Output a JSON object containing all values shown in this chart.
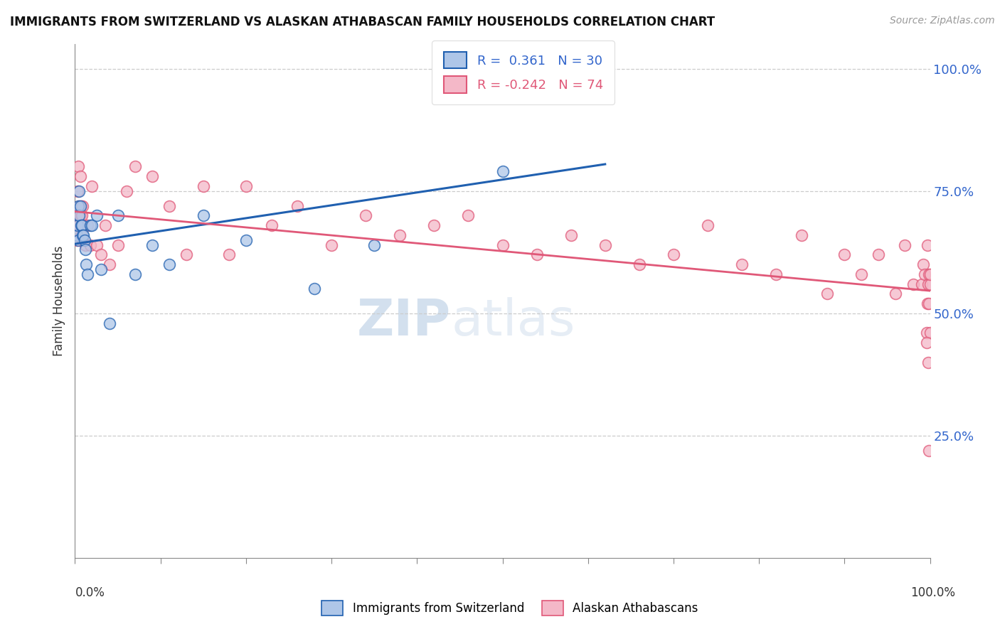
{
  "title": "IMMIGRANTS FROM SWITZERLAND VS ALASKAN ATHABASCAN FAMILY HOUSEHOLDS CORRELATION CHART",
  "source": "Source: ZipAtlas.com",
  "ylabel": "Family Households",
  "legend_blue_label": "Immigrants from Switzerland",
  "legend_pink_label": "Alaskan Athabascans",
  "blue_R": 0.361,
  "blue_N": 30,
  "pink_R": -0.242,
  "pink_N": 74,
  "blue_color": "#aec6e8",
  "pink_color": "#f4b8c8",
  "blue_line_color": "#2060b0",
  "pink_line_color": "#e05878",
  "watermark1": "ZIP",
  "watermark2": "atlas",
  "blue_scatter_x": [
    0.002,
    0.003,
    0.004,
    0.004,
    0.005,
    0.005,
    0.006,
    0.007,
    0.008,
    0.009,
    0.01,
    0.011,
    0.012,
    0.013,
    0.015,
    0.018,
    0.02,
    0.025,
    0.03,
    0.04,
    0.05,
    0.07,
    0.09,
    0.11,
    0.15,
    0.2,
    0.28,
    0.35,
    0.5,
    0.6
  ],
  "blue_scatter_y": [
    0.66,
    0.68,
    0.72,
    0.65,
    0.7,
    0.75,
    0.72,
    0.68,
    0.68,
    0.66,
    0.66,
    0.65,
    0.63,
    0.6,
    0.58,
    0.68,
    0.68,
    0.7,
    0.59,
    0.48,
    0.7,
    0.58,
    0.64,
    0.6,
    0.7,
    0.65,
    0.55,
    0.64,
    0.79,
    0.96
  ],
  "pink_scatter_x": [
    0.001,
    0.002,
    0.002,
    0.003,
    0.003,
    0.004,
    0.004,
    0.005,
    0.005,
    0.006,
    0.006,
    0.007,
    0.007,
    0.008,
    0.008,
    0.009,
    0.009,
    0.01,
    0.012,
    0.015,
    0.018,
    0.02,
    0.025,
    0.03,
    0.035,
    0.04,
    0.05,
    0.06,
    0.07,
    0.09,
    0.11,
    0.13,
    0.15,
    0.18,
    0.2,
    0.23,
    0.26,
    0.3,
    0.34,
    0.38,
    0.42,
    0.46,
    0.5,
    0.54,
    0.58,
    0.62,
    0.66,
    0.7,
    0.74,
    0.78,
    0.82,
    0.85,
    0.88,
    0.9,
    0.92,
    0.94,
    0.96,
    0.97,
    0.98,
    0.99,
    0.992,
    0.994,
    0.996,
    0.997,
    0.998,
    0.999,
    0.999,
    1.0,
    1.0,
    1.0,
    0.999,
    0.998,
    0.997,
    0.996
  ],
  "pink_scatter_y": [
    0.68,
    0.7,
    0.65,
    0.7,
    0.75,
    0.68,
    0.8,
    0.72,
    0.68,
    0.7,
    0.78,
    0.66,
    0.72,
    0.7,
    0.68,
    0.65,
    0.72,
    0.68,
    0.64,
    0.68,
    0.64,
    0.76,
    0.64,
    0.62,
    0.68,
    0.6,
    0.64,
    0.75,
    0.8,
    0.78,
    0.72,
    0.62,
    0.76,
    0.62,
    0.76,
    0.68,
    0.72,
    0.64,
    0.7,
    0.66,
    0.68,
    0.7,
    0.64,
    0.62,
    0.66,
    0.64,
    0.6,
    0.62,
    0.68,
    0.6,
    0.58,
    0.66,
    0.54,
    0.62,
    0.58,
    0.62,
    0.54,
    0.64,
    0.56,
    0.56,
    0.6,
    0.58,
    0.46,
    0.52,
    0.56,
    0.52,
    0.58,
    0.56,
    0.58,
    0.46,
    0.22,
    0.4,
    0.64,
    0.44
  ]
}
